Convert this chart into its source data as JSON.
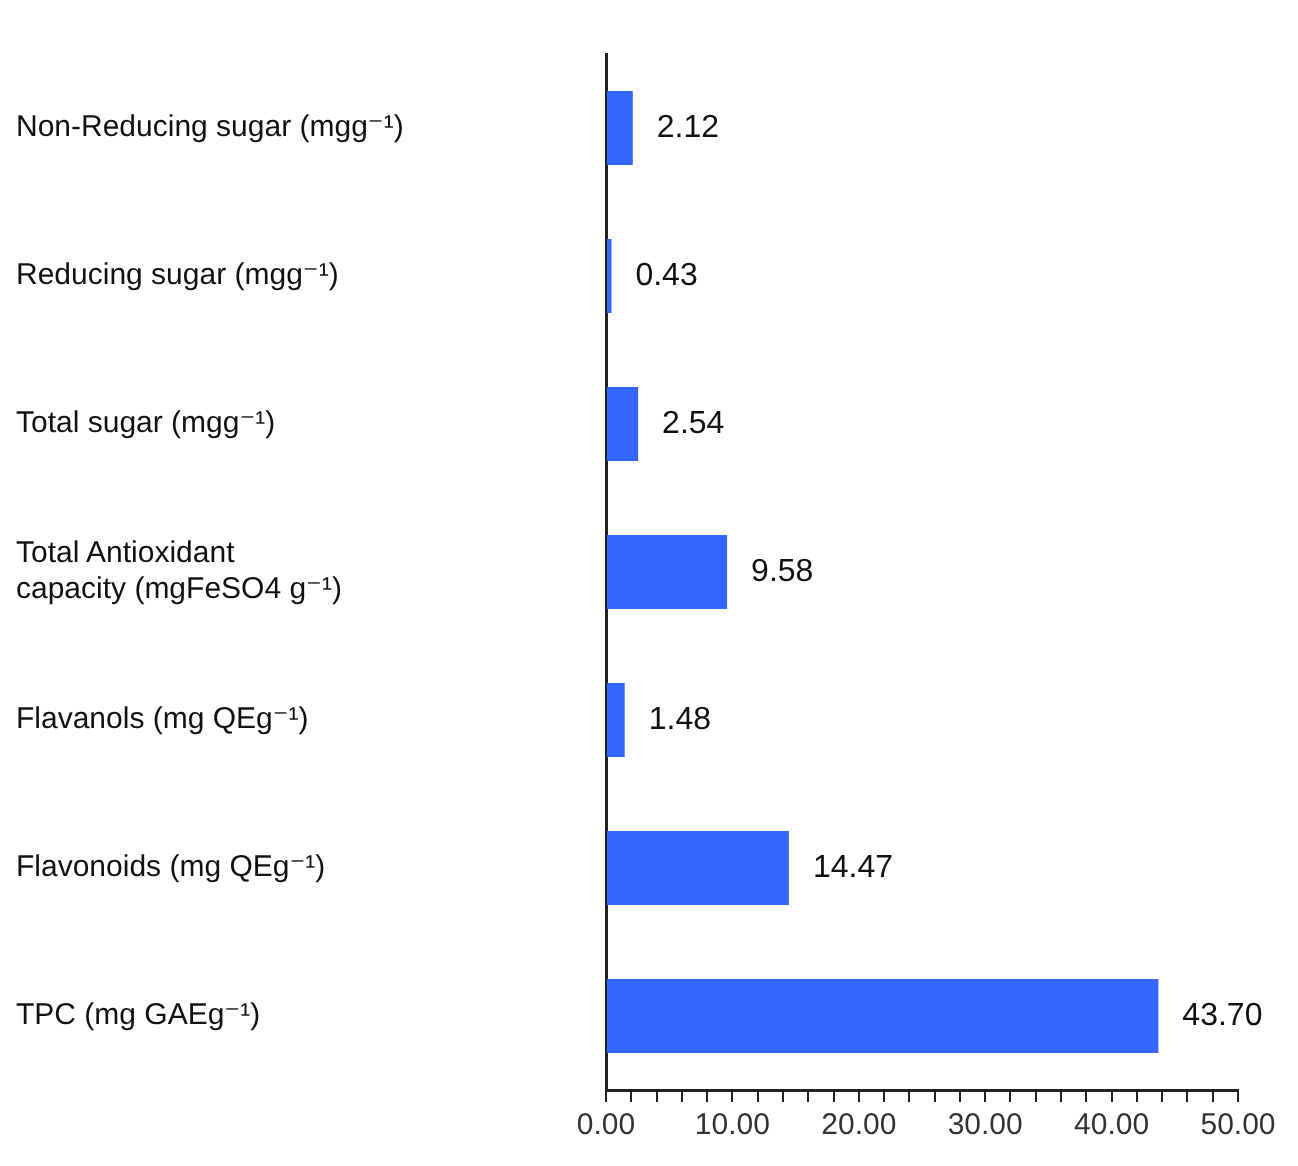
{
  "chart_data": {
    "type": "bar",
    "orientation": "horizontal",
    "categories": [
      "Non-Reducing sugar (mgg⁻¹)",
      "Reducing sugar (mgg⁻¹)",
      "Total sugar (mgg⁻¹)",
      "Total Antioxidant capacity (mgFeSO4 g⁻¹)",
      "Flavanols (mg QEg⁻¹)",
      "Flavonoids (mg QEg⁻¹)",
      "TPC (mg GAEg⁻¹)"
    ],
    "values": [
      2.12,
      0.43,
      2.54,
      9.58,
      1.48,
      14.47,
      43.7
    ],
    "value_labels": [
      "2.12",
      "0.43",
      "2.54",
      "9.58",
      "1.48",
      "14.47",
      "43.70"
    ],
    "color": "#3366ff",
    "xlim": [
      0,
      50
    ],
    "xticks": [
      {
        "value": 0,
        "label": "0.00"
      },
      {
        "value": 2,
        "label": null
      },
      {
        "value": 4,
        "label": null
      },
      {
        "value": 6,
        "label": null
      },
      {
        "value": 8,
        "label": null
      },
      {
        "value": 10,
        "label": "10.00"
      },
      {
        "value": 12,
        "label": null
      },
      {
        "value": 14,
        "label": null
      },
      {
        "value": 16,
        "label": null
      },
      {
        "value": 18,
        "label": null
      },
      {
        "value": 20,
        "label": "20.00"
      },
      {
        "value": 22,
        "label": null
      },
      {
        "value": 24,
        "label": null
      },
      {
        "value": 26,
        "label": null
      },
      {
        "value": 28,
        "label": null
      },
      {
        "value": 30,
        "label": "30.00"
      },
      {
        "value": 32,
        "label": null
      },
      {
        "value": 34,
        "label": null
      },
      {
        "value": 36,
        "label": null
      },
      {
        "value": 38,
        "label": null
      },
      {
        "value": 40,
        "label": "40.00"
      },
      {
        "value": 42,
        "label": null
      },
      {
        "value": 44,
        "label": null
      },
      {
        "value": 46,
        "label": null
      },
      {
        "value": 48,
        "label": null
      },
      {
        "value": 50,
        "label": "50.00"
      }
    ],
    "grid": false,
    "legend": false
  }
}
